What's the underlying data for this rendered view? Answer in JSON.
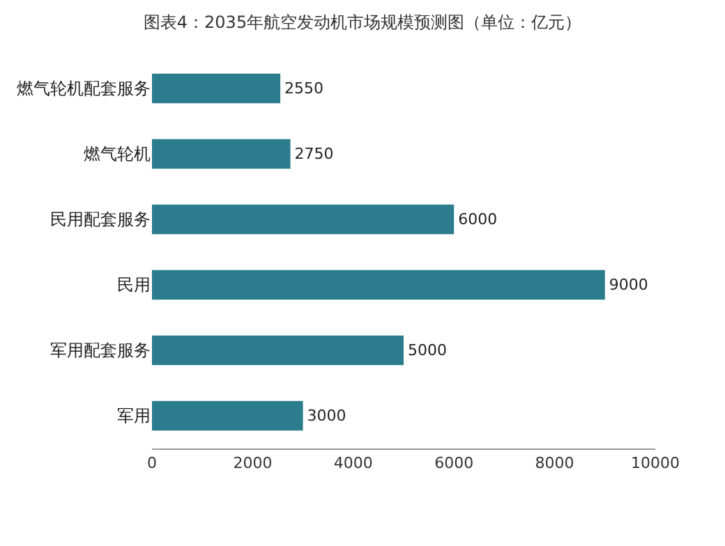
{
  "chart_data": {
    "type": "bar",
    "orientation": "horizontal",
    "title": "图表4：2035年航空发动机市场规模预测图（单位：亿元）",
    "categories": [
      "燃气轮机配套服务",
      "燃气轮机",
      "民用配套服务",
      "民用",
      "军用配套服务",
      "军用"
    ],
    "values": [
      2550,
      2750,
      6000,
      9000,
      5000,
      3000
    ],
    "color": "#2b7d8e",
    "xlim": [
      0,
      10000
    ],
    "xticks": [
      0,
      2000,
      4000,
      6000,
      8000,
      10000
    ],
    "grid": false,
    "data_labels": true
  }
}
